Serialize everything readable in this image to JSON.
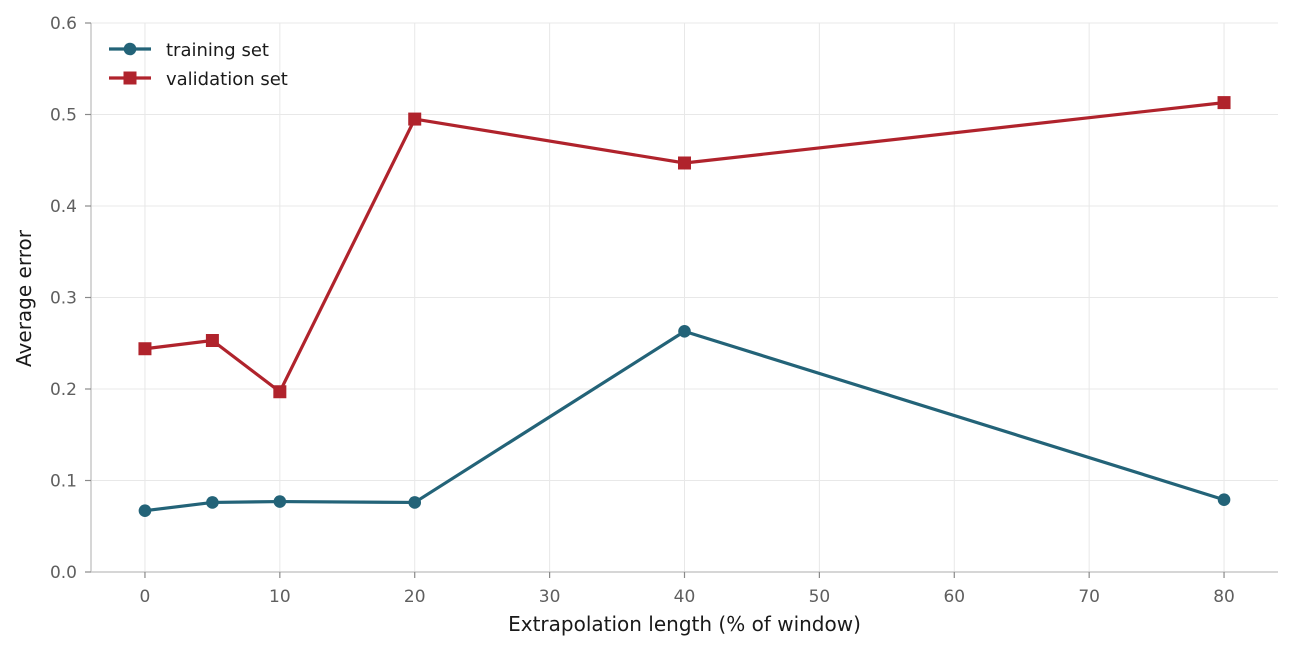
{
  "chart_data": {
    "type": "line",
    "title": "",
    "xlabel": "Extrapolation length (% of window)",
    "ylabel": "Average error",
    "xlim": [
      -4,
      84
    ],
    "ylim": [
      0,
      0.6
    ],
    "xticks": [
      0,
      10,
      20,
      30,
      40,
      50,
      60,
      70,
      80
    ],
    "yticks": [
      0.0,
      0.1,
      0.2,
      0.3,
      0.4,
      0.5,
      0.6
    ],
    "xtick_labels": [
      "0",
      "10",
      "20",
      "30",
      "40",
      "50",
      "60",
      "70",
      "80"
    ],
    "ytick_labels": [
      "0.0",
      "0.1",
      "0.2",
      "0.3",
      "0.4",
      "0.5",
      "0.6"
    ],
    "grid": true,
    "legend_position": "top-left",
    "x": [
      0,
      5,
      10,
      20,
      40,
      80
    ],
    "series": [
      {
        "name": "training set",
        "marker": "circle",
        "color": "#236378",
        "values": [
          0.067,
          0.076,
          0.077,
          0.076,
          0.263,
          0.079
        ]
      },
      {
        "name": "validation set",
        "marker": "square",
        "color": "#b0232c",
        "values": [
          0.244,
          0.253,
          0.197,
          0.495,
          0.447,
          0.513
        ]
      }
    ]
  }
}
